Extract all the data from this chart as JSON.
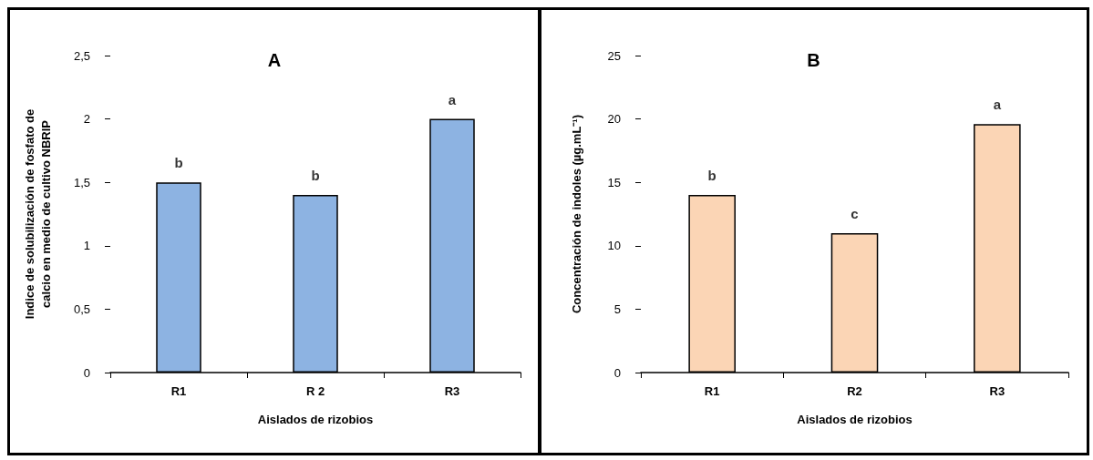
{
  "chart_data": [
    {
      "type": "bar",
      "title": "A",
      "xlabel": "Aislados de rizobios",
      "ylabel": "Indice de solubilización de fosfato de\ncalcio en medio de cultivo NBRIP",
      "categories": [
        "R1",
        "R 2",
        "R3"
      ],
      "values": [
        1.5,
        1.4,
        2.0
      ],
      "color": "#8db3e2",
      "ylim": [
        0,
        2.5
      ],
      "yticks": [
        0,
        {
          "value": 0.5,
          "label": "0,5"
        },
        1,
        {
          "value": 1.5,
          "label": "1,5"
        },
        2,
        {
          "value": 2.5,
          "label": "2,5"
        }
      ],
      "grid": false,
      "annotations": [
        {
          "text": "b",
          "x": "R1",
          "y": 1.5
        },
        {
          "text": "b",
          "x": "R 2",
          "y": 1.4
        },
        {
          "text": "a",
          "x": "R3",
          "y": 2.0
        }
      ]
    },
    {
      "type": "bar",
      "title": "B",
      "xlabel": "Aislados de rizobios",
      "ylabel": "Concentración de indoles (µg.mL⁻¹)",
      "categories": [
        "R1",
        "R2",
        "R3"
      ],
      "values": [
        14,
        11,
        19.6
      ],
      "color": "#fbd5b5",
      "ylim": [
        0,
        25
      ],
      "yticks": [
        0,
        5,
        10,
        15,
        20,
        25
      ],
      "grid": false,
      "annotations": [
        {
          "text": "b",
          "x": "R1",
          "y": 14
        },
        {
          "text": "c",
          "x": "R2",
          "y": 11
        },
        {
          "text": "a",
          "x": "R3",
          "y": 19.6
        }
      ]
    }
  ]
}
